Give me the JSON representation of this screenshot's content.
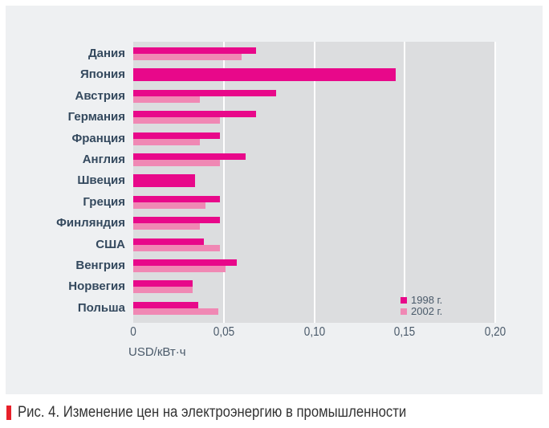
{
  "chart_data": {
    "type": "bar",
    "orientation": "horizontal",
    "categories": [
      "Дания",
      "Япония",
      "Австрия",
      "Германия",
      "Франция",
      "Англия",
      "Швеция",
      "Греция",
      "Финляндия",
      "США",
      "Венгрия",
      "Норвегия",
      "Польша"
    ],
    "series": [
      {
        "name": "1998 г.",
        "color": "#e8088a",
        "values": [
          0.068,
          0.145,
          0.079,
          0.068,
          0.048,
          0.062,
          0.034,
          0.048,
          0.048,
          0.039,
          0.057,
          0.033,
          0.036
        ]
      },
      {
        "name": "2002 г.",
        "color": "#f088b4",
        "values": [
          0.06,
          null,
          0.037,
          0.048,
          0.037,
          0.048,
          null,
          0.04,
          0.037,
          0.048,
          0.051,
          0.033,
          0.047
        ]
      }
    ],
    "xlim": [
      0,
      0.2
    ],
    "xticks": [
      "0",
      "0,05",
      "0,10",
      "0,15",
      "0,20"
    ],
    "xlabel": "USD/кВт·ч",
    "grid": true,
    "legend": "bottom-right"
  },
  "caption": "Рис. 4. Изменение цен на электроэнергию в промышленности"
}
